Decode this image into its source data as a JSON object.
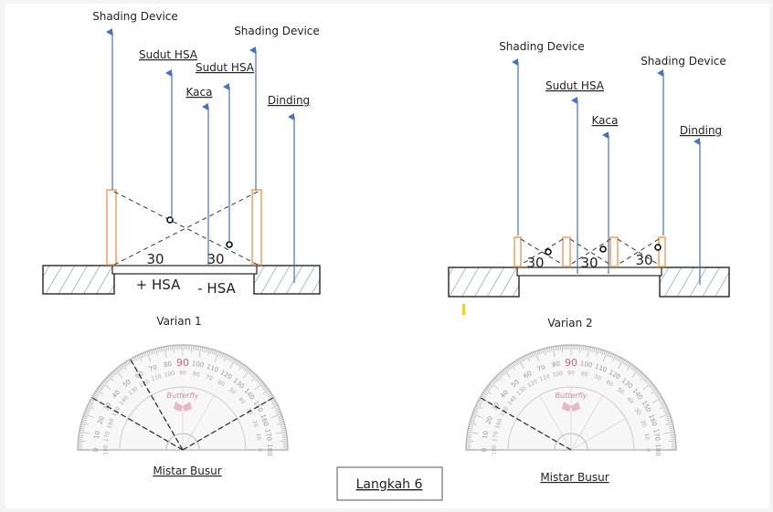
{
  "varian_1": {
    "shading_device_left": "Shading Device",
    "sudut_hsa_left": "Sudut HSA",
    "sudut_hsa_right": "Sudut HSA",
    "kaca": "Kaca",
    "shading_device_right": "Shading Device",
    "dinding": "Dinding",
    "angle_left": "30",
    "angle_right": "30",
    "plus_hsa": "+ HSA",
    "minus_hsa": "- HSA",
    "caption": "Varian 1"
  },
  "varian_2": {
    "shading_device_left": "Shading Device",
    "sudut_hsa": "Sudut HSA",
    "kaca": "Kaca",
    "shading_device_right": "Shading Device",
    "dinding": "Dinding",
    "angles": [
      "30",
      "30",
      "30"
    ],
    "caption": "Varian 2"
  },
  "protractor": {
    "brand": "Butterfly",
    "outer_scale": [
      "0",
      "10",
      "20",
      "30",
      "40",
      "50",
      "60",
      "70",
      "80",
      "90",
      "100",
      "110",
      "120",
      "130",
      "140",
      "150",
      "160",
      "170",
      "180"
    ],
    "caption_left": "Mistar Busur",
    "caption_right": "Mistar Busur"
  },
  "step_box": "Langkah 6"
}
